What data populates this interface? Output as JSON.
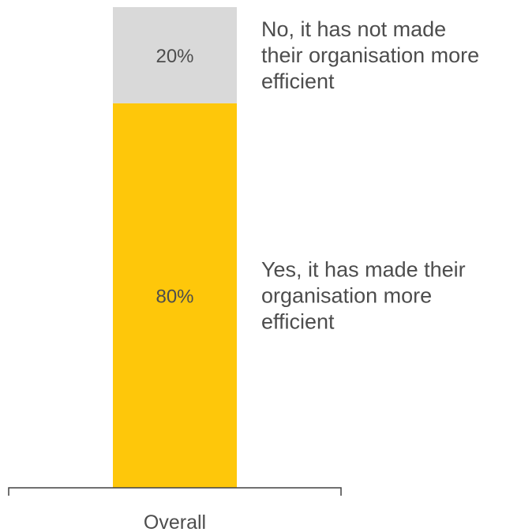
{
  "chart_data": {
    "type": "bar",
    "stacked": true,
    "categories": [
      "Overall"
    ],
    "series": [
      {
        "name": "Yes, it has made their organisation more efficient",
        "name_lines": [
          "Yes, it has made their",
          "organisation more",
          "efficient"
        ],
        "values": [
          80
        ],
        "value_labels": [
          "80%"
        ],
        "color": "#fec70a"
      },
      {
        "name": "No, it has not made their organisation more efficient",
        "name_lines": [
          "No, it has not made",
          "their organisation more",
          "efficient"
        ],
        "values": [
          20
        ],
        "value_labels": [
          "20%"
        ],
        "color": "#d9d9d9"
      }
    ],
    "ylim": [
      0,
      100
    ],
    "unit": "%",
    "grid": false,
    "legend": "right-of-segments",
    "axis_color": "#404040",
    "text_color": "#4d4d4d"
  }
}
